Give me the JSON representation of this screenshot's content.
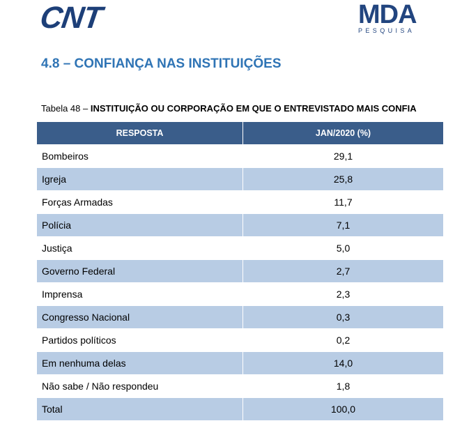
{
  "header": {
    "logo_left": "CNT",
    "logo_right_main": "MDA",
    "logo_right_sub": "PESQUISA"
  },
  "section": {
    "heading": "4.8 – CONFIANÇA NAS INSTITUIÇÕES"
  },
  "table": {
    "caption_prefix": "Tabela 48 – ",
    "caption_title": "INSTITUIÇÃO OU CORPORAÇÃO EM QUE O ENTREVISTADO MAIS CONFIA",
    "columns": [
      "RESPOSTA",
      "JAN/2020 (%)"
    ],
    "rows": [
      {
        "label": "Bombeiros",
        "value": "29,1"
      },
      {
        "label": "Igreja",
        "value": "25,8"
      },
      {
        "label": "Forças Armadas",
        "value": "11,7"
      },
      {
        "label": "Polícia",
        "value": "7,1"
      },
      {
        "label": "Justiça",
        "value": "5,0"
      },
      {
        "label": "Governo Federal",
        "value": "2,7"
      },
      {
        "label": "Imprensa",
        "value": "2,3"
      },
      {
        "label": "Congresso Nacional",
        "value": "0,3"
      },
      {
        "label": "Partidos políticos",
        "value": "0,2"
      },
      {
        "label": "Em nenhuma delas",
        "value": "14,0"
      },
      {
        "label": "Não sabe / Não respondeu",
        "value": "1,8"
      },
      {
        "label": "Total",
        "value": "100,0"
      }
    ]
  },
  "colors": {
    "header_fill": "#3a5d8a",
    "stripe_fill": "#b8cce4",
    "heading_blue": "#2f74b5",
    "logo_blue": "#1d3f78"
  }
}
